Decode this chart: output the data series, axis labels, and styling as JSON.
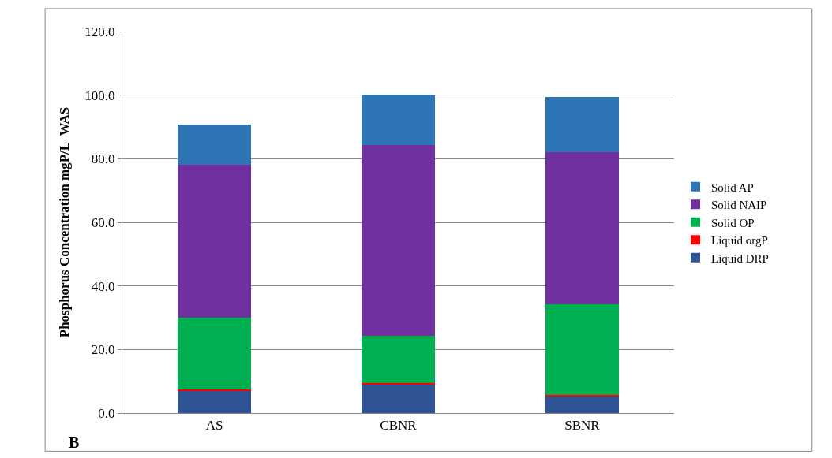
{
  "chart_data": {
    "type": "bar",
    "stacked": true,
    "ylabel": "Phosphorus Concentration mgP/L  WAS",
    "categories": [
      "AS",
      "CBNR",
      "SBNR"
    ],
    "series": [
      {
        "name": "Liquid DRP",
        "color": "#2f5597",
        "values": [
          7.0,
          9.0,
          5.3
        ]
      },
      {
        "name": "Liquid orgP",
        "color": "#ff0000",
        "values": [
          0.4,
          0.4,
          0.5
        ]
      },
      {
        "name": "Solid OP",
        "color": "#00b050",
        "values": [
          22.6,
          14.8,
          28.4
        ]
      },
      {
        "name": "Solid NAIP",
        "color": "#7030a0",
        "values": [
          48.0,
          60.2,
          47.8
        ]
      },
      {
        "name": "Solid AP",
        "color": "#2e75b6",
        "values": [
          12.8,
          15.8,
          17.3
        ]
      }
    ],
    "ylim": [
      0,
      120
    ],
    "yticks": [
      {
        "value": 0,
        "label": "0.0"
      },
      {
        "value": 20,
        "label": "20.0"
      },
      {
        "value": 40,
        "label": "40.0"
      },
      {
        "value": 60,
        "label": "60.0"
      },
      {
        "value": 80,
        "label": "80.0"
      },
      {
        "value": 100,
        "label": "100.0"
      },
      {
        "value": 120,
        "label": "120.0"
      }
    ],
    "grid": "y",
    "legend": "right",
    "annotations": [
      "B"
    ]
  }
}
